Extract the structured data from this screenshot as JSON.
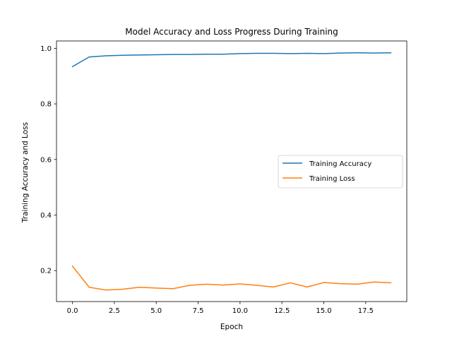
{
  "chart_data": {
    "type": "line",
    "title": "Model Accuracy and Loss Progress During Training",
    "xlabel": "Epoch",
    "ylabel": "Training Accuracy and Loss",
    "x": [
      0,
      1,
      2,
      3,
      4,
      5,
      6,
      7,
      8,
      9,
      10,
      11,
      12,
      13,
      14,
      15,
      16,
      17,
      18,
      19
    ],
    "xlim": [
      -0.95,
      19.95
    ],
    "ylim": [
      0.0885,
      1.0265
    ],
    "xticks": [
      0,
      2.5,
      5,
      7.5,
      10,
      12.5,
      15,
      17.5
    ],
    "xtick_labels": [
      "0.0",
      "2.5",
      "5.0",
      "7.5",
      "10.0",
      "12.5",
      "15.0",
      "17.5"
    ],
    "yticks": [
      0.2,
      0.4,
      0.6,
      0.8,
      1.0
    ],
    "ytick_labels": [
      "0.2",
      "0.4",
      "0.6",
      "0.8",
      "1.0"
    ],
    "grid": false,
    "legend_position": "center-right",
    "series": [
      {
        "name": "Training Accuracy",
        "color": "#1f77b4",
        "values": [
          0.934,
          0.969,
          0.973,
          0.975,
          0.976,
          0.977,
          0.978,
          0.978,
          0.979,
          0.979,
          0.981,
          0.982,
          0.982,
          0.981,
          0.982,
          0.981,
          0.983,
          0.984,
          0.983,
          0.984
        ]
      },
      {
        "name": "Training Loss",
        "color": "#ff7f0e",
        "values": [
          0.216,
          0.14,
          0.13,
          0.133,
          0.14,
          0.137,
          0.135,
          0.147,
          0.151,
          0.148,
          0.152,
          0.147,
          0.141,
          0.156,
          0.141,
          0.157,
          0.153,
          0.151,
          0.159,
          0.156
        ]
      }
    ]
  }
}
